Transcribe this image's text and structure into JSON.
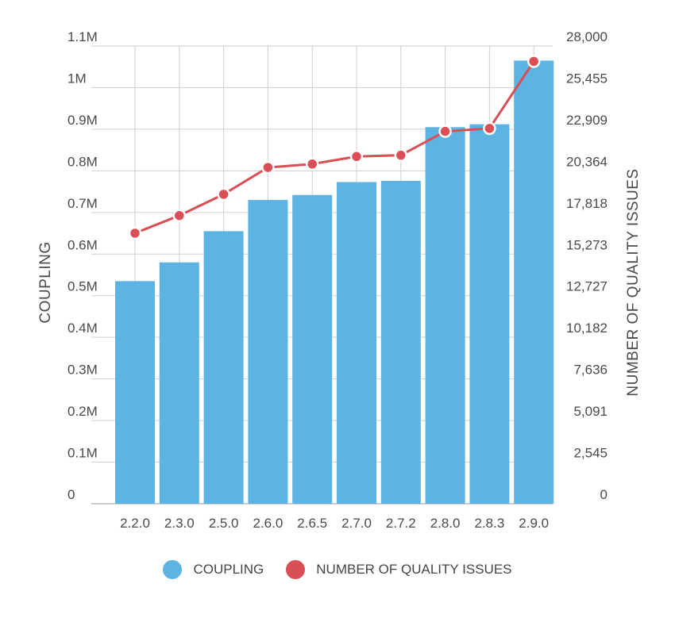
{
  "chart_data": {
    "type": "bar",
    "categories": [
      "2.2.0",
      "2.3.0",
      "2.5.0",
      "2.6.0",
      "2.6.5",
      "2.7.0",
      "2.7.2",
      "2.8.0",
      "2.8.3",
      "2.9.0"
    ],
    "series": [
      {
        "name": "COUPLING",
        "type": "bar",
        "axis": "left",
        "color": "#5db4e3",
        "values": [
          535000,
          580000,
          655000,
          730000,
          742000,
          773000,
          776000,
          905000,
          912000,
          1065000
        ]
      },
      {
        "name": "NUMBER OF QUALITY ISSUES",
        "type": "line",
        "axis": "right",
        "color": "#d94f55",
        "values": [
          16550,
          17630,
          18930,
          20570,
          20780,
          21240,
          21320,
          22780,
          22960,
          27060
        ]
      }
    ],
    "ylabel": "COUPLING",
    "y2label": "NUMBER OF QUALITY ISSUES",
    "ylim": [
      0,
      1100000
    ],
    "y2lim": [
      0,
      28000
    ],
    "yticks": [
      "0",
      "0.1M",
      "0.2M",
      "0.3M",
      "0.4M",
      "0.5M",
      "0.6M",
      "0.7M",
      "0.8M",
      "0.9M",
      "1M",
      "1.1M"
    ],
    "y2ticks": [
      "0",
      "2,545",
      "5,091",
      "7,636",
      "10,182",
      "12,727",
      "15,273",
      "17,818",
      "20,364",
      "22,909",
      "25,455",
      "28,000"
    ],
    "grid": true,
    "legend": "bottom"
  }
}
